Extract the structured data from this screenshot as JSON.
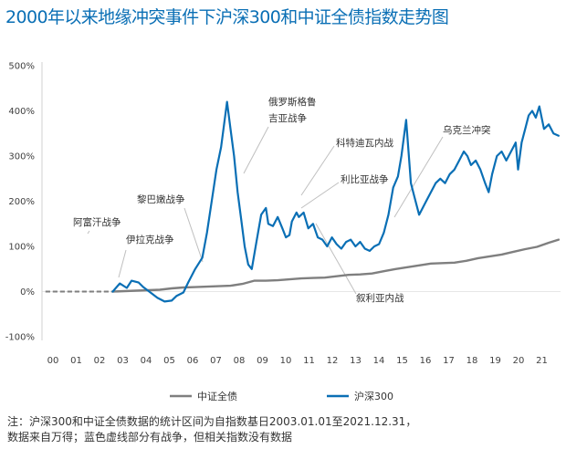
{
  "title": "2000年以来地缘冲突事件下沪深300和中证全债指数走势图",
  "note_lines": [
    "注：沪深300和中证全债数据的统计区间为自指数基日2003.01.01至2021.12.31，",
    "数据来自万得；蓝色虚线部分有战争，但相关指数没有数据"
  ],
  "colors": {
    "hs300": "#0a6fb5",
    "bond": "#7f7f7f",
    "title": "#0a6fb5",
    "annot_line": "#bfbfbf"
  },
  "chart_data": {
    "type": "line",
    "title": "2000年以来地缘冲突事件下沪深300和中证全债指数走势图",
    "xlabel": "",
    "ylabel": "",
    "x_range": [
      2000.0,
      2022.0
    ],
    "ylim": [
      -100,
      500
    ],
    "y_ticks": [
      -100,
      0,
      100,
      200,
      300,
      400,
      500
    ],
    "y_tick_labels": [
      "-100%",
      "0%",
      "100%",
      "200%",
      "300%",
      "400%",
      "500%"
    ],
    "x_tick_labels": [
      "00",
      "01",
      "02",
      "03",
      "04",
      "05",
      "06",
      "07",
      "08",
      "09",
      "10",
      "11",
      "12",
      "13",
      "14",
      "15",
      "16",
      "17",
      "18",
      "19",
      "20",
      "21"
    ],
    "grid": false,
    "legend_position": "bottom",
    "series": [
      {
        "name": "中证全债",
        "key": "bond",
        "x": [
          2000.0,
          2003.0,
          2003.5,
          2004.0,
          2004.5,
          2005.0,
          2005.5,
          2006.0,
          2006.5,
          2007.0,
          2007.5,
          2008.0,
          2008.5,
          2009.0,
          2009.5,
          2010.0,
          2010.5,
          2011.0,
          2011.5,
          2012.0,
          2012.5,
          2013.0,
          2013.5,
          2014.0,
          2014.5,
          2015.0,
          2015.5,
          2016.0,
          2016.5,
          2017.0,
          2017.5,
          2018.0,
          2018.5,
          2019.0,
          2019.5,
          2020.0,
          2020.5,
          2021.0,
          2021.5,
          2021.92
        ],
        "y": [
          0,
          0,
          1,
          2,
          3,
          4,
          7,
          9,
          10,
          11,
          12,
          13,
          17,
          24,
          24,
          25,
          27,
          29,
          30,
          31,
          34,
          37,
          38,
          40,
          45,
          50,
          54,
          58,
          62,
          63,
          64,
          68,
          74,
          78,
          82,
          88,
          94,
          99,
          108,
          115
        ],
        "dashed_until": 2003.0
      },
      {
        "name": "沪深300",
        "key": "hs300",
        "x": [
          2003.0,
          2003.3,
          2003.6,
          2003.8,
          2004.1,
          2004.3,
          2004.6,
          2004.9,
          2005.2,
          2005.5,
          2005.7,
          2006.0,
          2006.2,
          2006.5,
          2006.8,
          2007.0,
          2007.2,
          2007.4,
          2007.6,
          2007.75,
          2007.85,
          2008.0,
          2008.15,
          2008.3,
          2008.45,
          2008.6,
          2008.75,
          2008.9,
          2009.1,
          2009.3,
          2009.5,
          2009.6,
          2009.8,
          2010.0,
          2010.2,
          2010.35,
          2010.5,
          2010.6,
          2010.8,
          2010.9,
          2011.1,
          2011.3,
          2011.5,
          2011.7,
          2011.9,
          2012.1,
          2012.3,
          2012.5,
          2012.7,
          2012.9,
          2013.1,
          2013.3,
          2013.5,
          2013.7,
          2013.9,
          2014.1,
          2014.3,
          2014.5,
          2014.7,
          2014.9,
          2015.1,
          2015.25,
          2015.35,
          2015.45,
          2015.55,
          2015.65,
          2015.8,
          2016.0,
          2016.1,
          2016.3,
          2016.5,
          2016.7,
          2016.9,
          2017.1,
          2017.3,
          2017.5,
          2017.7,
          2017.9,
          2018.05,
          2018.2,
          2018.4,
          2018.6,
          2018.8,
          2018.95,
          2019.1,
          2019.3,
          2019.5,
          2019.7,
          2019.9,
          2020.1,
          2020.2,
          2020.35,
          2020.5,
          2020.65,
          2020.8,
          2020.95,
          2021.1,
          2021.3,
          2021.5,
          2021.7,
          2021.92
        ],
        "y": [
          0,
          18,
          8,
          24,
          20,
          10,
          -2,
          -14,
          -22,
          -20,
          -10,
          -2,
          20,
          50,
          75,
          130,
          200,
          270,
          320,
          380,
          420,
          360,
          300,
          220,
          160,
          100,
          60,
          50,
          110,
          170,
          185,
          150,
          145,
          165,
          140,
          120,
          125,
          155,
          175,
          165,
          175,
          140,
          150,
          120,
          115,
          100,
          120,
          105,
          95,
          110,
          115,
          100,
          110,
          95,
          90,
          100,
          105,
          130,
          170,
          230,
          255,
          300,
          340,
          380,
          310,
          240,
          210,
          170,
          180,
          200,
          220,
          240,
          250,
          240,
          260,
          270,
          290,
          310,
          300,
          280,
          290,
          270,
          240,
          220,
          260,
          300,
          310,
          290,
          310,
          330,
          270,
          330,
          360,
          390,
          400,
          385,
          410,
          360,
          370,
          350,
          345
        ],
        "dashed_until": 2003.0
      }
    ],
    "annotations": [
      {
        "text": "阿富汗战争",
        "year": 2001.8,
        "value": 0
      },
      {
        "text": "伊拉克战争",
        "year": 2003.0,
        "value": 10
      },
      {
        "text": "黎巴嫩战争",
        "year": 2006.5,
        "value": 65
      },
      {
        "text": "俄罗斯格鲁吉亚战争",
        "lines": [
          "俄罗斯格鲁",
          "吉亚战争"
        ],
        "year": 2008.35,
        "value": 250
      },
      {
        "text": "科特迪瓦内战",
        "year": 2011.0,
        "value": 215
      },
      {
        "text": "利比亚战争",
        "year": 2011.4,
        "value": 185
      },
      {
        "text": "叙利亚内战",
        "year": 2011.9,
        "value": 130
      },
      {
        "text": "乌克兰冲突",
        "year": 2014.3,
        "value": 125
      }
    ]
  }
}
